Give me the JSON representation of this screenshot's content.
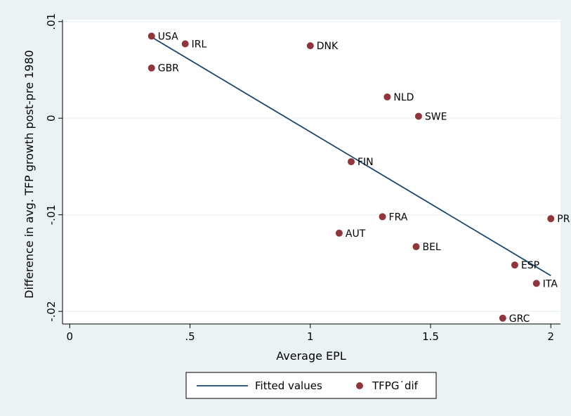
{
  "chart_data": {
    "type": "scatter",
    "xlabel": "Average EPL",
    "ylabel": "Difference in avg. TFP growth post-pre 1980",
    "xlim": [
      -0.03,
      2.04
    ],
    "ylim": [
      -0.0213,
      0.0102
    ],
    "xticks": [
      0,
      0.5,
      1,
      1.5,
      2
    ],
    "xtick_labels": [
      "0",
      ".5",
      "1",
      "1.5",
      "2"
    ],
    "yticks": [
      0.01,
      0,
      -0.01,
      -0.02
    ],
    "ytick_labels": [
      ".01",
      "0",
      "-.01",
      "-.02"
    ],
    "grid": true,
    "legend_position": "bottom",
    "series": [
      {
        "name": "Fitted values",
        "type": "line",
        "color": "#1a476f",
        "x": [
          0.34,
          2.0
        ],
        "y": [
          0.0084,
          -0.0163
        ]
      },
      {
        "name": "TFPG˙dif",
        "type": "scatter",
        "color": "#90353b",
        "points": [
          {
            "label": "USA",
            "x": 0.34,
            "y": 0.0085
          },
          {
            "label": "IRL",
            "x": 0.48,
            "y": 0.0077
          },
          {
            "label": "DNK",
            "x": 1.0,
            "y": 0.0075
          },
          {
            "label": "GBR",
            "x": 0.34,
            "y": 0.0052
          },
          {
            "label": "NLD",
            "x": 1.32,
            "y": 0.0022
          },
          {
            "label": "SWE",
            "x": 1.45,
            "y": 0.0002
          },
          {
            "label": "FIN",
            "x": 1.17,
            "y": -0.0045
          },
          {
            "label": "FRA",
            "x": 1.3,
            "y": -0.0102
          },
          {
            "label": "PR",
            "x": 2.0,
            "y": -0.0104
          },
          {
            "label": "AUT",
            "x": 1.12,
            "y": -0.0119
          },
          {
            "label": "BEL",
            "x": 1.44,
            "y": -0.0133
          },
          {
            "label": "ESP",
            "x": 1.85,
            "y": -0.0152
          },
          {
            "label": "ITA",
            "x": 1.94,
            "y": -0.0171
          },
          {
            "label": "GRC",
            "x": 1.8,
            "y": -0.0207
          }
        ]
      }
    ]
  }
}
